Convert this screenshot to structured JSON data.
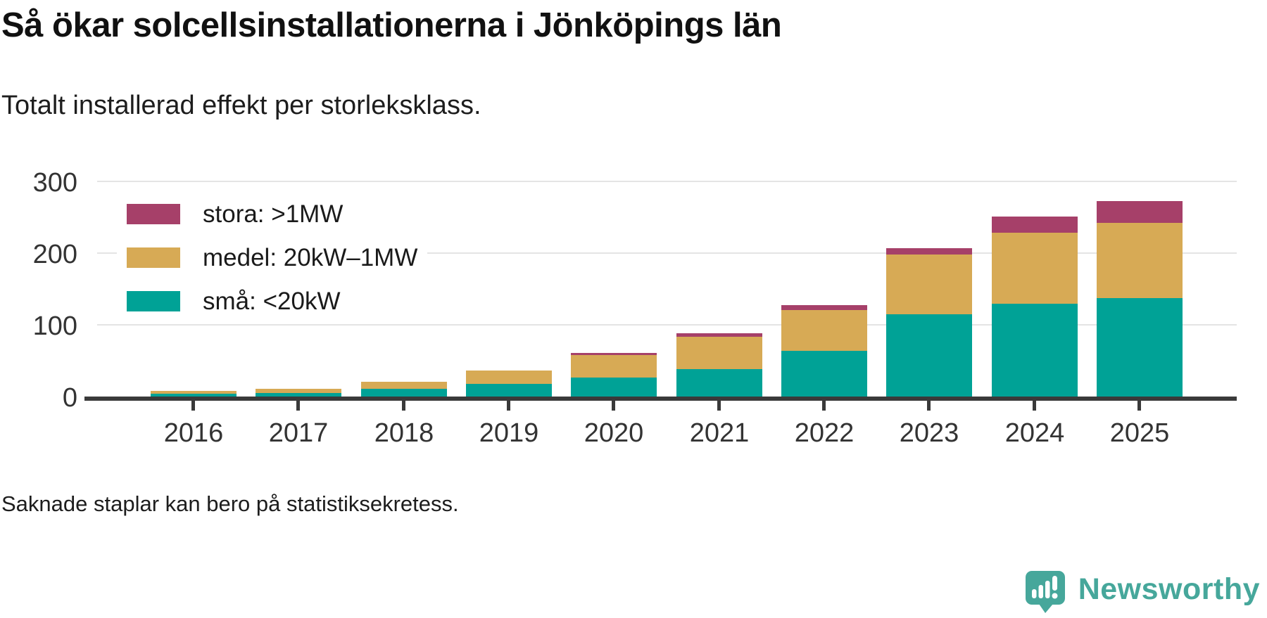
{
  "header": {
    "title": "Så ökar solcellsinstallationerna i Jönköpings län",
    "subtitle": "Totalt installerad effekt per storleksklass."
  },
  "legend": [
    {
      "label": "stora: >1MW",
      "color_key": "stora"
    },
    {
      "label": "medel: 20kW–1MW",
      "color_key": "medel"
    },
    {
      "label": "små: <20kW",
      "color_key": "sma"
    }
  ],
  "colors": {
    "sma": "#00a296",
    "medel": "#d7aa55",
    "stora": "#a64069",
    "axis": "#3a3a3a",
    "gridline": "#e4e4e4",
    "brand": "#46a79b",
    "title_text": "#111111",
    "body_text": "#1d1d1d"
  },
  "chart_data": {
    "type": "bar",
    "stacked": true,
    "title": "Så ökar solcellsinstallationerna i Jönköpings län",
    "subtitle": "Totalt installerad effekt per storleksklass.",
    "categories": [
      "2016",
      "2017",
      "2018",
      "2019",
      "2020",
      "2021",
      "2022",
      "2023",
      "2024",
      "2025"
    ],
    "series": [
      {
        "name": "små: <20kW",
        "color_key": "sma",
        "values": [
          4,
          5,
          11,
          18,
          26,
          38,
          64,
          115,
          129,
          137
        ]
      },
      {
        "name": "medel: 20kW–1MW",
        "color_key": "medel",
        "values": [
          4,
          6,
          10,
          18,
          32,
          45,
          57,
          83,
          99,
          105
        ]
      },
      {
        "name": "stora: >1MW",
        "color_key": "stora",
        "values": [
          0,
          0,
          0,
          0,
          3,
          5,
          6,
          9,
          23,
          31
        ]
      }
    ],
    "stack_order_bottom_to_top": [
      "små: <20kW",
      "medel: 20kW–1MW",
      "stora: >1MW"
    ],
    "xlabel": "",
    "ylabel": "",
    "yticks": [
      0,
      100,
      200,
      300
    ],
    "ylim": [
      0,
      300
    ],
    "grid": true,
    "legend_position": "inside-top-left"
  },
  "footer": {
    "note": "Saknade staplar kan bero på statistiksekretess.",
    "brand_name": "Newsworthy"
  }
}
